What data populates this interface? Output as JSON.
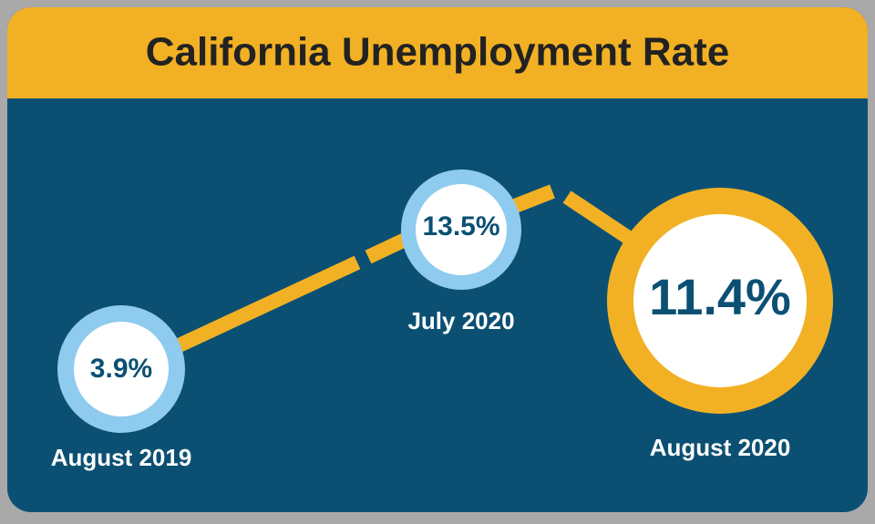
{
  "title": "California Unemployment Rate",
  "points": [
    {
      "label": "August 2019",
      "value": "3.9%"
    },
    {
      "label": "July 2020",
      "value": "13.5%"
    },
    {
      "label": "August 2020",
      "value": "11.4%"
    }
  ]
}
